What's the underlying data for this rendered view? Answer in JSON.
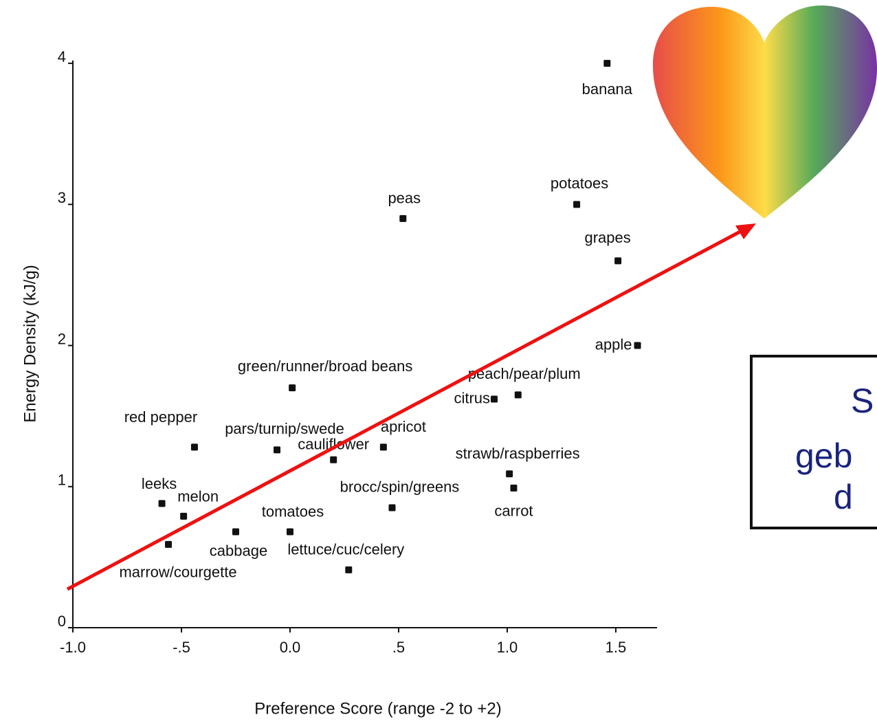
{
  "chart_data": {
    "type": "scatter",
    "x_label": "Preference Score (range -2 to +2)",
    "y_label": "Energy Density (kJ/g)",
    "point_labels": [
      "banana",
      "potatoes",
      "peas",
      "grapes",
      "apple",
      "green/runner/broad beans",
      "peach/pear/plum",
      "citrus",
      "red pepper",
      "pars/turnip/swede",
      "apricot",
      "cauliflower",
      "strawb/raspberries",
      "carrot",
      "leeks",
      "brocc/spin/greens",
      "melon",
      "tomatoes",
      "cabbage",
      "marrow/courgette",
      "lettuce/cuc/celery"
    ],
    "x": [
      1.46,
      1.32,
      0.52,
      1.51,
      1.6,
      0.01,
      1.05,
      0.94,
      -0.44,
      -0.06,
      0.43,
      0.2,
      1.01,
      1.03,
      -0.59,
      0.47,
      -0.49,
      0.0,
      -0.25,
      -0.56,
      0.27
    ],
    "values": [
      4.0,
      3.0,
      2.9,
      2.6,
      2.0,
      1.7,
      1.65,
      1.62,
      1.28,
      1.26,
      1.28,
      1.19,
      1.09,
      0.99,
      0.88,
      0.85,
      0.79,
      0.68,
      0.68,
      0.59,
      0.41
    ],
    "color": "#111111",
    "xlim": [
      -1.0,
      1.69
    ],
    "ylim": [
      0,
      4.02
    ],
    "xticks": [
      {
        "value": -1.0,
        "label": "-1.0"
      },
      {
        "value": -0.5,
        "label": "-.5"
      },
      {
        "value": 0,
        "label": "0.0"
      },
      {
        "value": 0.5,
        "label": ".5"
      },
      {
        "value": 1.0,
        "label": "1.0"
      },
      {
        "value": 1.5,
        "label": "1.5"
      }
    ],
    "yticks": [
      0,
      1,
      2,
      3,
      4
    ],
    "trend_color": "#ee1111",
    "annotation_lines": [
      "S",
      "geb",
      "d"
    ]
  }
}
